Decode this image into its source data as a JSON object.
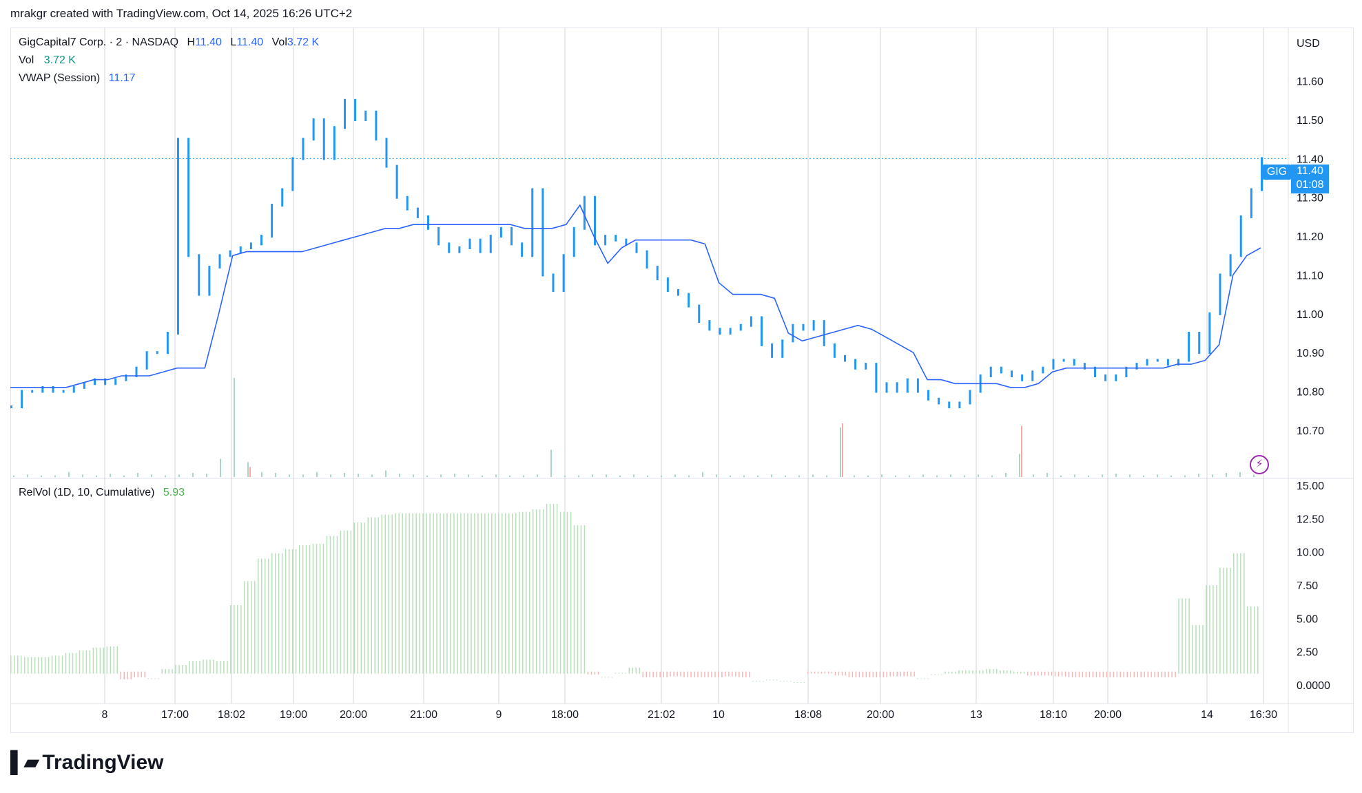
{
  "header": {
    "caption": "mrakgr created with TradingView.com, Oct 14, 2025 16:26 UTC+2"
  },
  "legend": {
    "symbol_line": "GigCapital7 Corp. · 2 · NASDAQ",
    "h_label": "H",
    "h_value": "11.40",
    "l_label": "L",
    "l_value": "11.40",
    "vol_label": "Vol",
    "vol_value": "3.72 K",
    "vol2_label": "Vol",
    "vol2_value": "3.72 K",
    "vwap_label": "VWAP (Session)",
    "vwap_value": "11.17",
    "relvol_label": "RelVol (1D, 10, Cumulative)",
    "relvol_value": "5.93"
  },
  "currency": "USD",
  "price_tag": {
    "symbol": "GIG",
    "price": "11.40",
    "countdown": "01:08"
  },
  "colors": {
    "up": "#2196f3",
    "vwap": "#2962ff",
    "vol_down": "#f7a9a7",
    "vol_up": "#a5d6c8",
    "relvol_up": "#b7dfb9",
    "relvol_down": "#f5b7b5",
    "grid": "#d1d4dc"
  },
  "icons": {
    "alert": "lightning-icon",
    "logo": "tradingview-logo-icon"
  },
  "logo_text": "TradingView",
  "chart_data": [
    {
      "type": "line",
      "title": "GigCapital7 Corp. · 2 · NASDAQ",
      "ylabel": "USD",
      "ylim": [
        10.62,
        11.72
      ],
      "y_ticks": [
        "11.60",
        "11.50",
        "11.40",
        "11.30",
        "11.20",
        "11.10",
        "11.00",
        "10.90",
        "10.80",
        "10.70"
      ],
      "x_ticks": [
        "8",
        "17:00",
        "18:02",
        "19:00",
        "20:00",
        "21:00",
        "9",
        "18:00",
        "21:02",
        "10",
        "18:08",
        "20:00",
        "13",
        "18:10",
        "20:00",
        "14",
        "16:30"
      ],
      "last_price": 11.4,
      "series": [
        {
          "name": "Price",
          "values": [
            10.76,
            10.8,
            10.8,
            10.81,
            10.8,
            10.8,
            10.81,
            10.82,
            10.83,
            10.82,
            10.83,
            10.84,
            10.86,
            10.9,
            10.9,
            10.95,
            11.45,
            11.15,
            11.05,
            11.12,
            11.15,
            11.16,
            11.17,
            11.18,
            11.2,
            11.28,
            11.32,
            11.4,
            11.45,
            11.5,
            11.4,
            11.48,
            11.55,
            11.5,
            11.52,
            11.45,
            11.38,
            11.3,
            11.27,
            11.25,
            11.22,
            11.18,
            11.16,
            11.17,
            11.19,
            11.16,
            11.2,
            11.22,
            11.18,
            11.15,
            11.32,
            11.1,
            11.06,
            11.15,
            11.22,
            11.3,
            11.18,
            11.2,
            11.19,
            11.18,
            11.16,
            11.12,
            11.09,
            11.06,
            11.05,
            11.02,
            10.98,
            10.96,
            10.95,
            10.96,
            10.97,
            10.99,
            10.92,
            10.89,
            10.93,
            10.97,
            10.96,
            10.98,
            10.92,
            10.89,
            10.88,
            10.86,
            10.87,
            10.8,
            10.82,
            10.8,
            10.83,
            10.8,
            10.78,
            10.77,
            10.76,
            10.77,
            10.8,
            10.84,
            10.86,
            10.85,
            10.84,
            10.83,
            10.85,
            10.86,
            10.88,
            10.88,
            10.87,
            10.86,
            10.84,
            10.83,
            10.84,
            10.86,
            10.87,
            10.88,
            10.88,
            10.87,
            10.88,
            10.95,
            10.9,
            11.0,
            11.1,
            11.15,
            11.25,
            11.32,
            11.4
          ]
        },
        {
          "name": "VWAP (Session)",
          "values": [
            10.81,
            10.81,
            10.81,
            10.81,
            10.81,
            10.82,
            10.83,
            10.83,
            10.84,
            10.84,
            10.84,
            10.85,
            10.86,
            10.86,
            10.86,
            11.0,
            11.15,
            11.16,
            11.16,
            11.16,
            11.16,
            11.16,
            11.17,
            11.18,
            11.19,
            11.2,
            11.21,
            11.22,
            11.22,
            11.23,
            11.23,
            11.23,
            11.23,
            11.23,
            11.23,
            11.23,
            11.23,
            11.22,
            11.22,
            11.22,
            11.23,
            11.28,
            11.2,
            11.13,
            11.17,
            11.19,
            11.19,
            11.19,
            11.19,
            11.19,
            11.18,
            11.08,
            11.05,
            11.05,
            11.05,
            11.04,
            10.95,
            10.93,
            10.94,
            10.95,
            10.96,
            10.97,
            10.96,
            10.94,
            10.92,
            10.9,
            10.83,
            10.83,
            10.82,
            10.82,
            10.82,
            10.82,
            10.81,
            10.81,
            10.82,
            10.85,
            10.86,
            10.86,
            10.86,
            10.86,
            10.86,
            10.86,
            10.86,
            10.86,
            10.87,
            10.87,
            10.88,
            10.92,
            11.1,
            11.15,
            11.17
          ]
        }
      ]
    },
    {
      "type": "bar",
      "title": "Vol",
      "series": [
        {
          "name": "Volume",
          "values": [
            0.2,
            0.3,
            0.2,
            0.2,
            0.6,
            0.3,
            0.2,
            0.4,
            0.2,
            0.5,
            0.3,
            0.2,
            0.3,
            0.5,
            0.4,
            2.2,
            12.0,
            1.8,
            0.6,
            0.5,
            0.3,
            0.3,
            0.6,
            0.3,
            0.5,
            0.4,
            0.3,
            0.8,
            0.4,
            0.3,
            0.2,
            0.3,
            0.4,
            0.3,
            0.2,
            0.3,
            0.2,
            0.2,
            0.3,
            3.3,
            0.2,
            0.2,
            0.3,
            0.3,
            0.2,
            0.3,
            0.2,
            0.2,
            0.3,
            0.2,
            0.6,
            0.3,
            0.2,
            0.2,
            0.2,
            0.3,
            0.2,
            0.2,
            0.3,
            0.2,
            6.0,
            0.2,
            0.2,
            0.3,
            0.2,
            0.2,
            0.3,
            0.2,
            0.3,
            0.2,
            0.3,
            0.2,
            0.5,
            2.8,
            0.3,
            0.5,
            0.2,
            0.3,
            0.2,
            0.3,
            0.4,
            0.3,
            0.2,
            0.3,
            0.2,
            0.2,
            0.4,
            0.3,
            0.5,
            0.6,
            0.3
          ]
        },
        {
          "name": "Down volume markers",
          "values": [
            0,
            0,
            0,
            0,
            0,
            0,
            0,
            0,
            0,
            0,
            0,
            0,
            0,
            0,
            0,
            0,
            0,
            1.2,
            0,
            0,
            0,
            0,
            0,
            0,
            0,
            0,
            0,
            0,
            0,
            0,
            0,
            0,
            0,
            0,
            0,
            0,
            0,
            0,
            0,
            0,
            0,
            0,
            0,
            0,
            0,
            0,
            0,
            0,
            0,
            0,
            0,
            0,
            0,
            0,
            0,
            0,
            0,
            0,
            0,
            0,
            6.5,
            0,
            0,
            0,
            0,
            0,
            0,
            0,
            0,
            0,
            0,
            0,
            0,
            6.2,
            0,
            0,
            0,
            0,
            0,
            0,
            0,
            0,
            0,
            0,
            0,
            0,
            0,
            0,
            0,
            0,
            0
          ]
        }
      ]
    },
    {
      "type": "bar",
      "title": "RelVol (1D, 10, Cumulative)",
      "ylim": [
        0,
        15
      ],
      "y_ticks": [
        "15.00",
        "12.50",
        "10.00",
        "7.50",
        "5.00",
        "2.50",
        "0.0000"
      ],
      "series": [
        {
          "name": "RelVol",
          "values": [
            2.2,
            2.1,
            2.1,
            2.2,
            2.4,
            2.6,
            2.8,
            2.9,
            -0.8,
            -0.6,
            0.5,
            1.2,
            1.5,
            1.8,
            1.9,
            1.8,
            6.0,
            7.8,
            9.5,
            9.9,
            10.2,
            10.5,
            10.6,
            11.2,
            11.6,
            12.2,
            12.6,
            12.8,
            12.9,
            12.9,
            12.9,
            12.9,
            12.9,
            12.9,
            12.9,
            12.9,
            12.9,
            13.0,
            13.2,
            13.6,
            13.0,
            12.0,
            -0.3,
            0.6,
            0.9,
            1.3,
            -0.6,
            -0.6,
            -0.5,
            -0.6,
            -0.6,
            -0.6,
            -0.5,
            -0.6,
            0.3,
            0.4,
            0.3,
            0.2,
            -0.2,
            -0.2,
            -0.4,
            -0.6,
            -0.6,
            -0.6,
            -0.5,
            -0.5,
            0.5,
            0.8,
            1.0,
            1.1,
            1.1,
            1.2,
            1.1,
            1.0,
            -0.4,
            -0.4,
            -0.5,
            -0.6,
            -0.6,
            -0.6,
            -0.6,
            -0.6,
            -0.6,
            -0.6,
            -0.6,
            6.5,
            4.5,
            7.5,
            8.8,
            9.9,
            5.9
          ]
        }
      ]
    }
  ]
}
